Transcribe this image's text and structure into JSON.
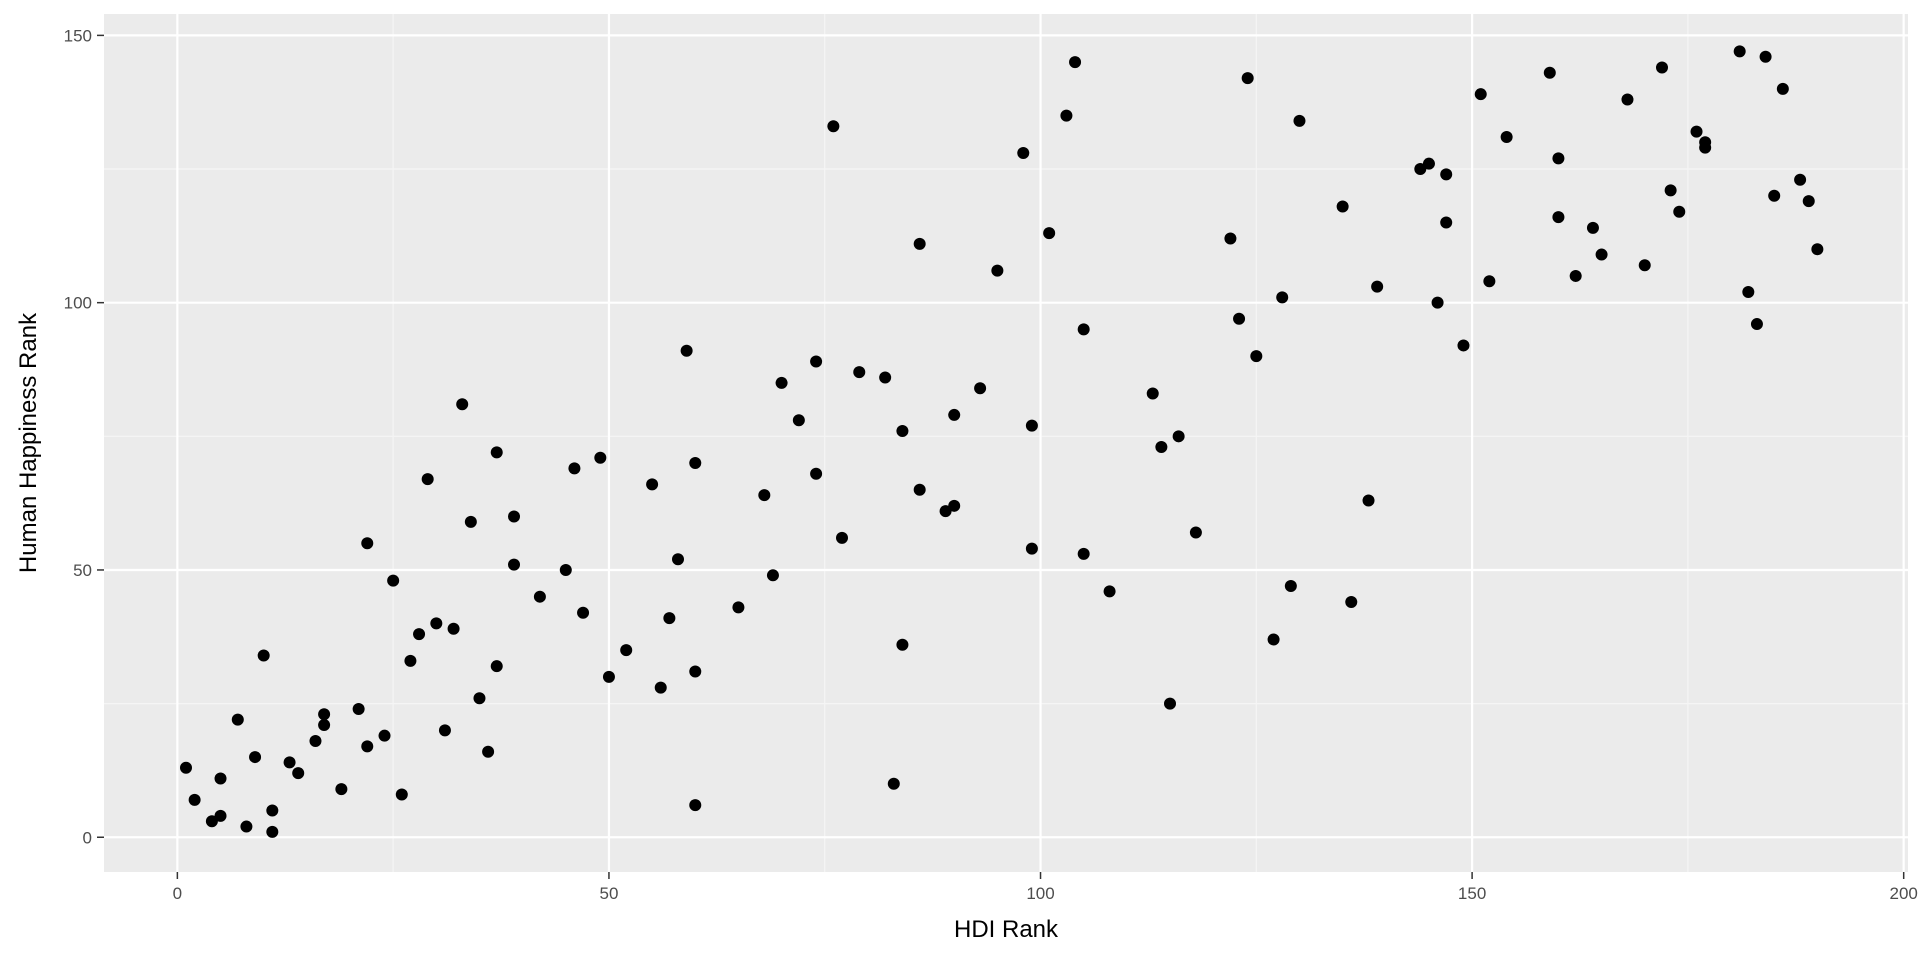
{
  "chart_data": {
    "type": "scatter",
    "title": "",
    "xlabel": "HDI Rank",
    "ylabel": "Human Happiness Rank",
    "xlim": [
      -8.5,
      200.5
    ],
    "ylim": [
      -6.5,
      154
    ],
    "x_ticks": [
      0,
      50,
      100,
      150,
      200
    ],
    "y_ticks": [
      0,
      50,
      100,
      150
    ],
    "x_tick_labels": [
      "0",
      "50",
      "100",
      "150",
      "200"
    ],
    "y_tick_labels": [
      "0",
      "50",
      "100",
      "150"
    ],
    "grid": true,
    "legend": "none",
    "colors": {
      "panel_background": "#ebebeb",
      "grid_major": "#ffffff",
      "grid_minor": "#f5f5f5",
      "point": "#000000",
      "tick_text": "#4d4d4d",
      "title_text": "#000000"
    },
    "points": [
      {
        "x": 1,
        "y": 13
      },
      {
        "x": 2,
        "y": 7
      },
      {
        "x": 4,
        "y": 3
      },
      {
        "x": 5,
        "y": 4
      },
      {
        "x": 5,
        "y": 11
      },
      {
        "x": 7,
        "y": 22
      },
      {
        "x": 8,
        "y": 2
      },
      {
        "x": 9,
        "y": 15
      },
      {
        "x": 10,
        "y": 34
      },
      {
        "x": 11,
        "y": 5
      },
      {
        "x": 11,
        "y": 1
      },
      {
        "x": 13,
        "y": 14
      },
      {
        "x": 14,
        "y": 12
      },
      {
        "x": 16,
        "y": 18
      },
      {
        "x": 17,
        "y": 23
      },
      {
        "x": 17,
        "y": 21
      },
      {
        "x": 19,
        "y": 9
      },
      {
        "x": 21,
        "y": 24
      },
      {
        "x": 22,
        "y": 17
      },
      {
        "x": 22,
        "y": 55
      },
      {
        "x": 24,
        "y": 19
      },
      {
        "x": 25,
        "y": 48
      },
      {
        "x": 26,
        "y": 8
      },
      {
        "x": 27,
        "y": 33
      },
      {
        "x": 28,
        "y": 38
      },
      {
        "x": 29,
        "y": 67
      },
      {
        "x": 30,
        "y": 40
      },
      {
        "x": 31,
        "y": 20
      },
      {
        "x": 32,
        "y": 39
      },
      {
        "x": 33,
        "y": 81
      },
      {
        "x": 34,
        "y": 59
      },
      {
        "x": 35,
        "y": 26
      },
      {
        "x": 36,
        "y": 16
      },
      {
        "x": 37,
        "y": 72
      },
      {
        "x": 37,
        "y": 32
      },
      {
        "x": 39,
        "y": 60
      },
      {
        "x": 39,
        "y": 51
      },
      {
        "x": 42,
        "y": 45
      },
      {
        "x": 45,
        "y": 50
      },
      {
        "x": 46,
        "y": 69
      },
      {
        "x": 47,
        "y": 42
      },
      {
        "x": 49,
        "y": 71
      },
      {
        "x": 50,
        "y": 30
      },
      {
        "x": 52,
        "y": 35
      },
      {
        "x": 55,
        "y": 66
      },
      {
        "x": 56,
        "y": 28
      },
      {
        "x": 57,
        "y": 41
      },
      {
        "x": 58,
        "y": 52
      },
      {
        "x": 59,
        "y": 91
      },
      {
        "x": 60,
        "y": 70
      },
      {
        "x": 60,
        "y": 31
      },
      {
        "x": 60,
        "y": 6
      },
      {
        "x": 65,
        "y": 43
      },
      {
        "x": 68,
        "y": 64
      },
      {
        "x": 69,
        "y": 49
      },
      {
        "x": 70,
        "y": 85
      },
      {
        "x": 72,
        "y": 78
      },
      {
        "x": 74,
        "y": 89
      },
      {
        "x": 74,
        "y": 68
      },
      {
        "x": 76,
        "y": 133
      },
      {
        "x": 77,
        "y": 56
      },
      {
        "x": 79,
        "y": 87
      },
      {
        "x": 82,
        "y": 86
      },
      {
        "x": 83,
        "y": 10
      },
      {
        "x": 84,
        "y": 76
      },
      {
        "x": 84,
        "y": 36
      },
      {
        "x": 86,
        "y": 111
      },
      {
        "x": 86,
        "y": 65
      },
      {
        "x": 89,
        "y": 61
      },
      {
        "x": 90,
        "y": 79
      },
      {
        "x": 90,
        "y": 62
      },
      {
        "x": 93,
        "y": 84
      },
      {
        "x": 95,
        "y": 106
      },
      {
        "x": 98,
        "y": 128
      },
      {
        "x": 99,
        "y": 77
      },
      {
        "x": 99,
        "y": 54
      },
      {
        "x": 101,
        "y": 113
      },
      {
        "x": 103,
        "y": 135
      },
      {
        "x": 104,
        "y": 145
      },
      {
        "x": 105,
        "y": 95
      },
      {
        "x": 105,
        "y": 53
      },
      {
        "x": 108,
        "y": 46
      },
      {
        "x": 113,
        "y": 83
      },
      {
        "x": 114,
        "y": 73
      },
      {
        "x": 115,
        "y": 25
      },
      {
        "x": 116,
        "y": 75
      },
      {
        "x": 118,
        "y": 57
      },
      {
        "x": 122,
        "y": 112
      },
      {
        "x": 123,
        "y": 97
      },
      {
        "x": 124,
        "y": 142
      },
      {
        "x": 125,
        "y": 90
      },
      {
        "x": 127,
        "y": 37
      },
      {
        "x": 128,
        "y": 101
      },
      {
        "x": 129,
        "y": 47
      },
      {
        "x": 130,
        "y": 134
      },
      {
        "x": 135,
        "y": 118
      },
      {
        "x": 136,
        "y": 44
      },
      {
        "x": 138,
        "y": 63
      },
      {
        "x": 139,
        "y": 103
      },
      {
        "x": 144,
        "y": 125
      },
      {
        "x": 145,
        "y": 126
      },
      {
        "x": 146,
        "y": 100
      },
      {
        "x": 147,
        "y": 124
      },
      {
        "x": 147,
        "y": 115
      },
      {
        "x": 149,
        "y": 92
      },
      {
        "x": 151,
        "y": 139
      },
      {
        "x": 152,
        "y": 104
      },
      {
        "x": 154,
        "y": 131
      },
      {
        "x": 159,
        "y": 143
      },
      {
        "x": 160,
        "y": 127
      },
      {
        "x": 160,
        "y": 116
      },
      {
        "x": 162,
        "y": 105
      },
      {
        "x": 164,
        "y": 114
      },
      {
        "x": 165,
        "y": 109
      },
      {
        "x": 168,
        "y": 138
      },
      {
        "x": 170,
        "y": 107
      },
      {
        "x": 172,
        "y": 144
      },
      {
        "x": 173,
        "y": 121
      },
      {
        "x": 174,
        "y": 117
      },
      {
        "x": 176,
        "y": 132
      },
      {
        "x": 177,
        "y": 130
      },
      {
        "x": 177,
        "y": 129
      },
      {
        "x": 181,
        "y": 147
      },
      {
        "x": 182,
        "y": 102
      },
      {
        "x": 183,
        "y": 96
      },
      {
        "x": 184,
        "y": 146
      },
      {
        "x": 185,
        "y": 120
      },
      {
        "x": 186,
        "y": 140
      },
      {
        "x": 188,
        "y": 123
      },
      {
        "x": 189,
        "y": 119
      },
      {
        "x": 190,
        "y": 110
      }
    ]
  }
}
